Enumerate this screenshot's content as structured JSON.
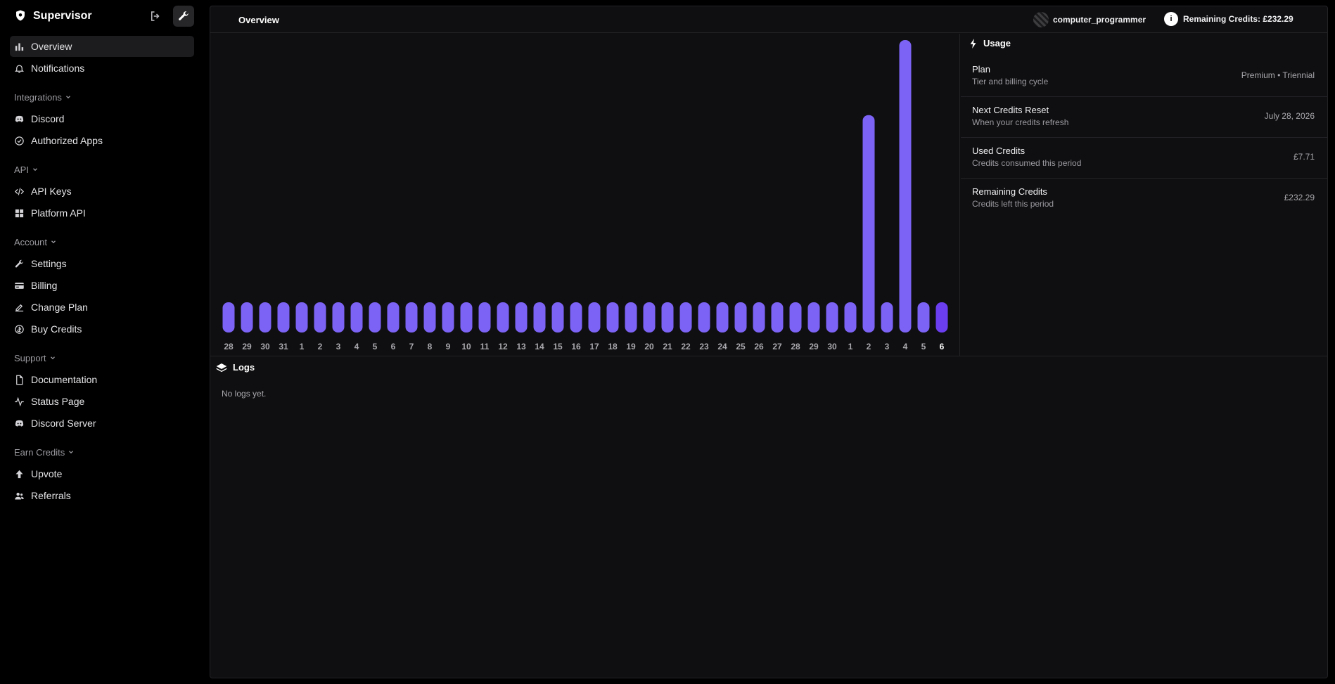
{
  "app": {
    "name": "Supervisor"
  },
  "sidebar": {
    "top_items": [
      {
        "label": "Overview",
        "icon": "bar-chart-icon",
        "active": true
      },
      {
        "label": "Notifications",
        "icon": "bell-icon"
      }
    ],
    "groups": [
      {
        "label": "Integrations",
        "items": [
          {
            "label": "Discord",
            "icon": "discord-icon"
          },
          {
            "label": "Authorized Apps",
            "icon": "check-circle-icon"
          }
        ]
      },
      {
        "label": "API",
        "items": [
          {
            "label": "API Keys",
            "icon": "code-icon"
          },
          {
            "label": "Platform API",
            "icon": "grid-icon"
          }
        ]
      },
      {
        "label": "Account",
        "items": [
          {
            "label": "Settings",
            "icon": "wrench-icon"
          },
          {
            "label": "Billing",
            "icon": "card-icon"
          },
          {
            "label": "Change Plan",
            "icon": "edit-plan-icon"
          },
          {
            "label": "Buy Credits",
            "icon": "coin-icon"
          }
        ]
      },
      {
        "label": "Support",
        "items": [
          {
            "label": "Documentation",
            "icon": "document-icon"
          },
          {
            "label": "Status Page",
            "icon": "activity-icon"
          },
          {
            "label": "Discord Server",
            "icon": "discord-icon"
          }
        ]
      },
      {
        "label": "Earn Credits",
        "items": [
          {
            "label": "Upvote",
            "icon": "arrow-up-icon"
          },
          {
            "label": "Referrals",
            "icon": "users-icon"
          }
        ]
      }
    ]
  },
  "header": {
    "title": "Overview",
    "username": "computer_programmer",
    "credits_label": "Remaining Credits: £232.29"
  },
  "usage": {
    "title": "Usage",
    "rows": [
      {
        "label": "Plan",
        "sub": "Tier and billing cycle",
        "value": "Premium • Triennial"
      },
      {
        "label": "Next Credits Reset",
        "sub": "When your credits refresh",
        "value": "July 28, 2026"
      },
      {
        "label": "Used Credits",
        "sub": "Credits consumed this period",
        "value": "£7.71"
      },
      {
        "label": "Remaining Credits",
        "sub": "Credits left this period",
        "value": "£232.29"
      }
    ]
  },
  "logs": {
    "title": "Logs",
    "empty": "No logs yet."
  },
  "colors": {
    "bar": "#7c63f5",
    "bar_current": "#6b3ff0",
    "tick": "#a9a9ae",
    "tick_current": "#ffffff"
  },
  "chart_data": {
    "type": "bar",
    "categories": [
      "28",
      "29",
      "30",
      "31",
      "1",
      "2",
      "3",
      "4",
      "5",
      "6",
      "7",
      "8",
      "9",
      "10",
      "11",
      "12",
      "13",
      "14",
      "15",
      "16",
      "17",
      "18",
      "19",
      "20",
      "21",
      "22",
      "23",
      "24",
      "25",
      "26",
      "27",
      "28",
      "29",
      "30",
      "1",
      "2",
      "3",
      "4",
      "5",
      "6"
    ],
    "values": [
      0.1,
      0.1,
      0.1,
      0.1,
      0.1,
      0.1,
      0.1,
      0.1,
      0.1,
      0.1,
      0.1,
      0.1,
      0.1,
      0.1,
      0.1,
      0.1,
      0.1,
      0.1,
      0.1,
      0.1,
      0.1,
      0.1,
      0.1,
      0.1,
      0.1,
      0.1,
      0.1,
      0.1,
      0.1,
      0.1,
      0.1,
      0.1,
      0.1,
      0.1,
      0.1,
      2.42,
      0.1,
      3.35,
      0.1,
      0.1
    ],
    "current_index": 39,
    "ylim": [
      0,
      3.35
    ],
    "grid": false,
    "title": "",
    "xlabel": "",
    "ylabel": ""
  }
}
